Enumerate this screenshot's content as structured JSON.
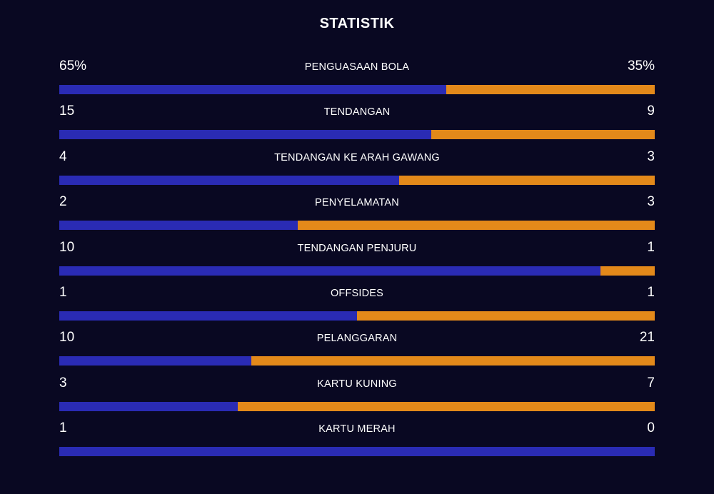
{
  "title": "STATISTIK",
  "colors": {
    "background": "#090822",
    "home": "#2a2bb4",
    "away": "#e3891a"
  },
  "stats": [
    {
      "label": "PENGUASAAN BOLA",
      "home": "65%",
      "away": "35%",
      "home_share": 0.65
    },
    {
      "label": "TENDANGAN",
      "home": "15",
      "away": "9",
      "home_share": 0.625
    },
    {
      "label": "TENDANGAN KE ARAH GAWANG",
      "home": "4",
      "away": "3",
      "home_share": 0.571
    },
    {
      "label": "PENYELAMATAN",
      "home": "2",
      "away": "3",
      "home_share": 0.4
    },
    {
      "label": "TENDANGAN PENJURU",
      "home": "10",
      "away": "1",
      "home_share": 0.909
    },
    {
      "label": "OFFSIDES",
      "home": "1",
      "away": "1",
      "home_share": 0.5
    },
    {
      "label": "PELANGGARAN",
      "home": "10",
      "away": "21",
      "home_share": 0.323
    },
    {
      "label": "KARTU KUNING",
      "home": "3",
      "away": "7",
      "home_share": 0.3
    },
    {
      "label": "KARTU MERAH",
      "home": "1",
      "away": "0",
      "home_share": 1.0
    }
  ]
}
